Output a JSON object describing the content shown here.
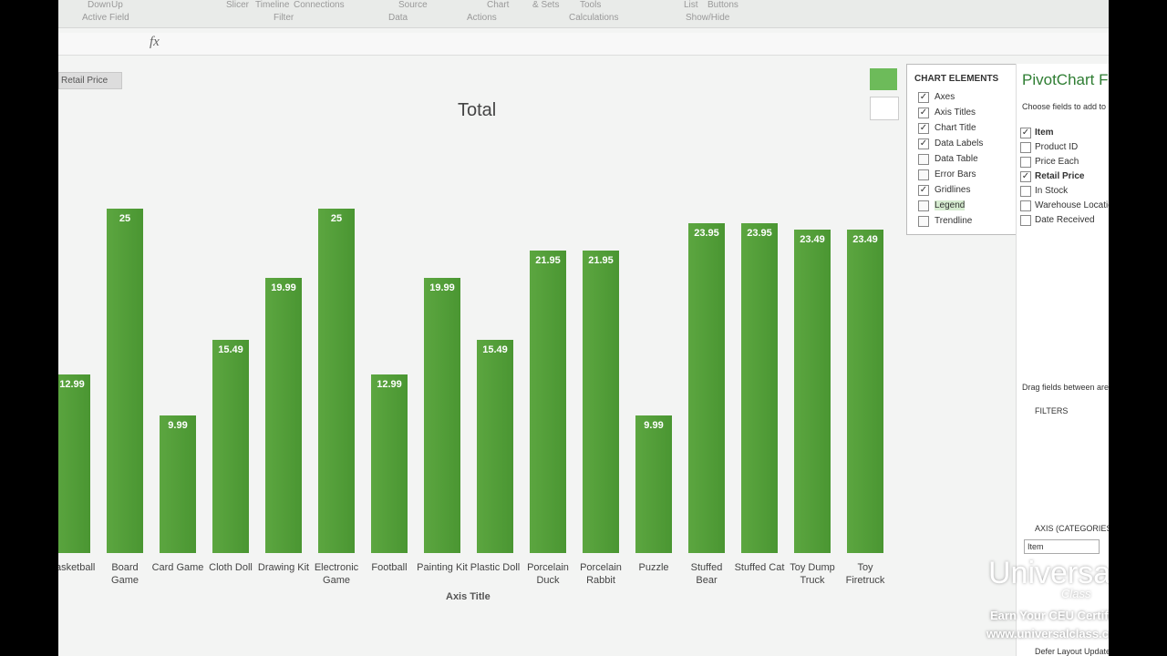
{
  "ribbon": {
    "buttons": [
      "Down",
      "Up",
      "Slicer",
      "Timeline",
      "Connections",
      "Source",
      "Chart",
      "& Sets",
      "Tools",
      "List",
      "Buttons"
    ],
    "groups": [
      "Active Field",
      "Filter",
      "Data",
      "Actions",
      "Calculations",
      "Show/Hide"
    ]
  },
  "formula_bar": {
    "function_icon": "fx"
  },
  "field_button": "Retail Price",
  "chart_data": {
    "type": "bar",
    "title": "Total",
    "x_axis_title": "Axis Title",
    "categories": [
      "Basketball",
      "Board Game",
      "Card Game",
      "Cloth Doll",
      "Drawing Kit",
      "Electronic Game",
      "Football",
      "Painting Kit",
      "Plastic Doll",
      "Porcelain Duck",
      "Porcelain Rabbit",
      "Puzzle",
      "Stuffed Bear",
      "Stuffed Cat",
      "Toy Dump Truck",
      "Toy Firetruck"
    ],
    "values": [
      12.99,
      25,
      9.99,
      15.49,
      19.99,
      25,
      12.99,
      19.99,
      15.49,
      21.95,
      21.95,
      9.99,
      23.95,
      23.95,
      23.49,
      23.49
    ],
    "color": "#5ca640"
  },
  "chart_elements": {
    "title": "CHART ELEMENTS",
    "items": [
      {
        "label": "Axes",
        "checked": true
      },
      {
        "label": "Axis Titles",
        "checked": true
      },
      {
        "label": "Chart Title",
        "checked": true
      },
      {
        "label": "Data Labels",
        "checked": true
      },
      {
        "label": "Data Table",
        "checked": false
      },
      {
        "label": "Error Bars",
        "checked": false
      },
      {
        "label": "Gridlines",
        "checked": true
      },
      {
        "label": "Legend",
        "checked": false
      },
      {
        "label": "Trendline",
        "checked": false
      }
    ]
  },
  "field_list": {
    "title": "PivotChart Fields",
    "subtitle": "Choose fields to add to report:",
    "fields": [
      {
        "label": "Item",
        "checked": true
      },
      {
        "label": "Product ID",
        "checked": false
      },
      {
        "label": "Price Each",
        "checked": false
      },
      {
        "label": "Retail Price",
        "checked": true
      },
      {
        "label": "In Stock",
        "checked": false
      },
      {
        "label": "Warehouse Location",
        "checked": false
      },
      {
        "label": "Date Received",
        "checked": false
      }
    ],
    "drag_hint": "Drag fields between areas below:",
    "filters": "FILTERS",
    "axis": "AXIS (CATEGORIES)",
    "axis_item": "Item",
    "defer": "Defer Layout Update"
  },
  "watermark": {
    "brand": "Universal",
    "brand_sub": "Class",
    "tagline": "Earn Your CEU Certificate",
    "url": "www.universalclass.com"
  }
}
